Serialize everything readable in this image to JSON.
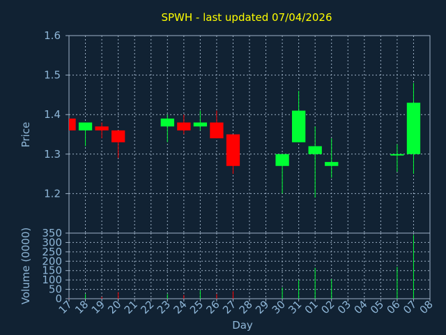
{
  "chart_data": {
    "type": "candlestick",
    "title": "SPWH - last updated 07/04/2026",
    "xlabel": "Day",
    "colors": {
      "up": "#00ff33",
      "down": "#ff0000",
      "background": "#112233",
      "title": "#ffff00",
      "text": "#8fb7d8",
      "grid": "#9fb3c8"
    },
    "x_categories": [
      "17",
      "18",
      "19",
      "20",
      "21",
      "22",
      "23",
      "24",
      "25",
      "26",
      "27",
      "28",
      "29",
      "30",
      "31",
      "01",
      "02",
      "03",
      "04",
      "05",
      "06",
      "07",
      "08"
    ],
    "price": {
      "ylabel": "Price",
      "ylim": [
        1.1,
        1.6
      ],
      "yticks": [
        "1.6",
        "1.5",
        "1.4",
        "1.3",
        "1.2"
      ],
      "candles": [
        {
          "day": 0.0,
          "open": 1.39,
          "high": 1.39,
          "low": 1.36,
          "close": 1.36
        },
        {
          "day": 1.0,
          "open": 1.36,
          "high": 1.38,
          "low": 1.32,
          "close": 1.38
        },
        {
          "day": 2.0,
          "open": 1.37,
          "high": 1.38,
          "low": 1.34,
          "close": 1.36
        },
        {
          "day": 3.0,
          "open": 1.36,
          "high": 1.36,
          "low": 1.29,
          "close": 1.33
        },
        {
          "day": 6.0,
          "open": 1.37,
          "high": 1.4,
          "low": 1.33,
          "close": 1.39
        },
        {
          "day": 7.0,
          "open": 1.38,
          "high": 1.4,
          "low": 1.35,
          "close": 1.36
        },
        {
          "day": 8.0,
          "open": 1.37,
          "high": 1.41,
          "low": 1.36,
          "close": 1.38
        },
        {
          "day": 9.0,
          "open": 1.38,
          "high": 1.41,
          "low": 1.34,
          "close": 1.34
        },
        {
          "day": 10.0,
          "open": 1.35,
          "high": 1.35,
          "low": 1.25,
          "close": 1.27
        },
        {
          "day": 13.0,
          "open": 1.27,
          "high": 1.3,
          "low": 1.2,
          "close": 1.3
        },
        {
          "day": 14.0,
          "open": 1.33,
          "high": 1.46,
          "low": 1.33,
          "close": 1.41
        },
        {
          "day": 15.0,
          "open": 1.3,
          "high": 1.37,
          "low": 1.19,
          "close": 1.32
        },
        {
          "day": 16.0,
          "open": 1.27,
          "high": 1.34,
          "low": 1.24,
          "close": 1.28
        },
        {
          "day": 20.0,
          "open": 1.3,
          "high": 1.325,
          "low": 1.255,
          "close": 1.3
        },
        {
          "day": 21.0,
          "open": 1.3,
          "high": 1.48,
          "low": 1.25,
          "close": 1.43
        }
      ]
    },
    "volume": {
      "ylabel": "Volume (0000)",
      "ylim": [
        0,
        350
      ],
      "yticks": [
        "350",
        "300",
        "250",
        "200",
        "150",
        "100",
        "50",
        "0"
      ],
      "bars": [
        {
          "day": 0.0,
          "value": 2,
          "dir": "down"
        },
        {
          "day": 1.0,
          "value": 25,
          "dir": "up"
        },
        {
          "day": 2.0,
          "value": 10,
          "dir": "down"
        },
        {
          "day": 3.0,
          "value": 35,
          "dir": "down"
        },
        {
          "day": 6.0,
          "value": 25,
          "dir": "up"
        },
        {
          "day": 7.0,
          "value": 20,
          "dir": "down"
        },
        {
          "day": 8.0,
          "value": 45,
          "dir": "up"
        },
        {
          "day": 9.0,
          "value": 25,
          "dir": "down"
        },
        {
          "day": 10.0,
          "value": 40,
          "dir": "down"
        },
        {
          "day": 13.0,
          "value": 60,
          "dir": "up"
        },
        {
          "day": 14.0,
          "value": 100,
          "dir": "up"
        },
        {
          "day": 15.0,
          "value": 165,
          "dir": "up"
        },
        {
          "day": 16.0,
          "value": 105,
          "dir": "up"
        },
        {
          "day": 20.0,
          "value": 170,
          "dir": "up"
        },
        {
          "day": 21.0,
          "value": 340,
          "dir": "up"
        }
      ]
    }
  }
}
